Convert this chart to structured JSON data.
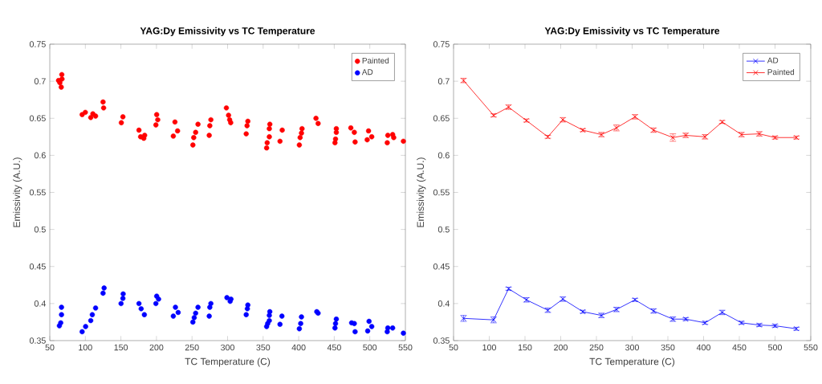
{
  "chart_data": [
    {
      "type": "scatter",
      "title": "YAG:Dy Emissivity vs TC Temperature",
      "xlabel": "TC Temperature (C)",
      "ylabel": "Emissivity (A.U.)",
      "xlim": [
        50,
        550
      ],
      "ylim": [
        0.35,
        0.75
      ],
      "xticks": [
        50,
        100,
        150,
        200,
        250,
        300,
        350,
        400,
        450,
        500,
        550
      ],
      "yticks": [
        0.35,
        0.4,
        0.45,
        0.5,
        0.55,
        0.6,
        0.65,
        0.7,
        0.75
      ],
      "legend": "top right",
      "marker": "circle",
      "series": [
        {
          "name": "Painted",
          "color": "#ff0000",
          "x": [
            62.3,
            64.2,
            66.1,
            66.9,
            67.2,
            95.5,
            100.0,
            107.6,
            110.6,
            114.4,
            124.9,
            125.7,
            150.6,
            152.8,
            175.4,
            177.7,
            182.2,
            183.4,
            199.2,
            200.3,
            201.8,
            223.7,
            226.0,
            229.7,
            251.2,
            252.4,
            255.1,
            258.4,
            274.2,
            275.0,
            276.5,
            298.3,
            301.4,
            302.9,
            304.4,
            326.2,
            327.4,
            328.5,
            354.9,
            355.7,
            358.7,
            358.7,
            359.4,
            373.7,
            376.8,
            400.9,
            402.0,
            403.9,
            404.7,
            424.3,
            427.3,
            451.0,
            451.8,
            452.9,
            452.9,
            473.3,
            478.2,
            479.3,
            496.3,
            498.2,
            502.7,
            524.5,
            525.3,
            532.1,
            533.6,
            547.2
          ],
          "values": [
            0.701,
            0.698,
            0.692,
            0.709,
            0.703,
            0.655,
            0.658,
            0.651,
            0.656,
            0.653,
            0.672,
            0.664,
            0.644,
            0.652,
            0.634,
            0.625,
            0.623,
            0.627,
            0.641,
            0.655,
            0.648,
            0.626,
            0.645,
            0.633,
            0.614,
            0.624,
            0.631,
            0.642,
            0.627,
            0.64,
            0.648,
            0.664,
            0.654,
            0.648,
            0.644,
            0.629,
            0.64,
            0.646,
            0.61,
            0.617,
            0.625,
            0.636,
            0.642,
            0.619,
            0.634,
            0.614,
            0.624,
            0.63,
            0.636,
            0.65,
            0.643,
            0.617,
            0.622,
            0.631,
            0.636,
            0.637,
            0.631,
            0.618,
            0.621,
            0.633,
            0.625,
            0.617,
            0.627,
            0.628,
            0.624,
            0.619
          ]
        },
        {
          "name": "AD",
          "color": "#0000ff",
          "x": [
            63.5,
            65.4,
            66.5,
            66.5,
            95.5,
            100.4,
            107.6,
            109.8,
            114.4,
            124.9,
            126.4,
            150.2,
            152.8,
            153.2,
            175.4,
            178.5,
            183.0,
            199.2,
            200.3,
            203.0,
            223.7,
            226.7,
            230.5,
            251.2,
            253.1,
            255.1,
            258.4,
            274.2,
            275.0,
            276.5,
            299.1,
            303.6,
            304.8,
            326.2,
            327.8,
            328.5,
            354.9,
            356.4,
            358.7,
            358.7,
            359.4,
            373.7,
            376.4,
            400.9,
            402.8,
            403.9,
            425.4,
            427.3,
            451.0,
            451.8,
            452.9,
            474.4,
            479.3,
            478.2,
            497.0,
            498.9,
            502.7,
            524.5,
            525.3,
            532.1,
            547.2
          ],
          "values": [
            0.37,
            0.374,
            0.385,
            0.395,
            0.362,
            0.369,
            0.377,
            0.385,
            0.394,
            0.414,
            0.421,
            0.4,
            0.407,
            0.413,
            0.4,
            0.393,
            0.385,
            0.4,
            0.41,
            0.406,
            0.383,
            0.395,
            0.388,
            0.375,
            0.381,
            0.387,
            0.395,
            0.383,
            0.395,
            0.4,
            0.408,
            0.403,
            0.406,
            0.385,
            0.393,
            0.398,
            0.369,
            0.373,
            0.377,
            0.384,
            0.389,
            0.372,
            0.383,
            0.366,
            0.373,
            0.382,
            0.389,
            0.387,
            0.367,
            0.373,
            0.379,
            0.374,
            0.362,
            0.373,
            0.363,
            0.376,
            0.369,
            0.362,
            0.367,
            0.367,
            0.36
          ]
        }
      ]
    },
    {
      "type": "line",
      "title": "YAG:Dy Emissivity vs TC Temperature",
      "xlabel": "TC Temperature (C)",
      "ylabel": "Emissivity (A.U.)",
      "xlim": [
        50,
        550
      ],
      "ylim": [
        0.35,
        0.75
      ],
      "xticks": [
        50,
        100,
        150,
        200,
        250,
        300,
        350,
        400,
        450,
        500,
        550
      ],
      "yticks": [
        0.35,
        0.4,
        0.45,
        0.5,
        0.55,
        0.6,
        0.65,
        0.7,
        0.75
      ],
      "legend": "top right",
      "marker": "cross",
      "line_style": "solid",
      "x": [
        64,
        106,
        127,
        152,
        182,
        203,
        231,
        257,
        278,
        304,
        330,
        357,
        375,
        402,
        426,
        453,
        478,
        500,
        530
      ],
      "series": [
        {
          "name": "AD",
          "color": "#0000ff",
          "values": [
            0.38,
            0.378,
            0.42,
            0.405,
            0.391,
            0.406,
            0.389,
            0.384,
            0.392,
            0.405,
            0.39,
            0.379,
            0.379,
            0.374,
            0.388,
            0.374,
            0.371,
            0.37,
            0.366
          ],
          "errors": [
            0.004,
            0.004,
            0.002,
            0.003,
            0.003,
            0.003,
            0.002,
            0.003,
            0.003,
            0.002,
            0.003,
            0.003,
            0.002,
            0.002,
            0.003,
            0.002,
            0.002,
            0.002,
            0.002
          ]
        },
        {
          "name": "Painted",
          "color": "#ff0000",
          "values": [
            0.701,
            0.654,
            0.665,
            0.647,
            0.625,
            0.648,
            0.634,
            0.628,
            0.637,
            0.652,
            0.634,
            0.624,
            0.627,
            0.625,
            0.645,
            0.628,
            0.629,
            0.624,
            0.624
          ],
          "errors": [
            0.003,
            0.002,
            0.003,
            0.002,
            0.002,
            0.003,
            0.002,
            0.003,
            0.004,
            0.003,
            0.003,
            0.005,
            0.003,
            0.003,
            0.002,
            0.003,
            0.003,
            0.002,
            0.002
          ]
        }
      ]
    }
  ]
}
